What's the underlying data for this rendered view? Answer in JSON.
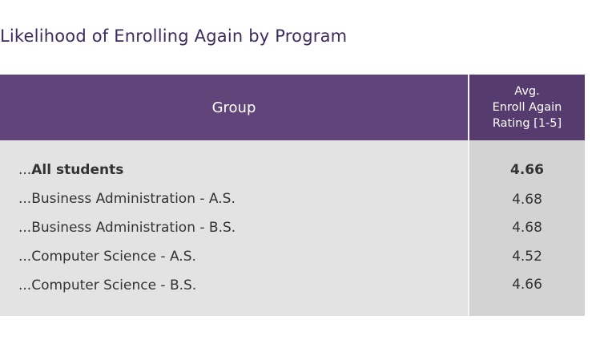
{
  "title": "Likelihood of Enrolling Again by Program",
  "header": {
    "group": "Group",
    "rating_line1": "Avg.",
    "rating_line2": "Enroll Again",
    "rating_line3": "Rating [1-5]"
  },
  "rows": [
    {
      "prefix": "...",
      "label": "All students",
      "value": "4.66"
    },
    {
      "prefix": "...",
      "label": "Business Administration - A.S.",
      "value": "4.68"
    },
    {
      "prefix": "...",
      "label": "Business Administration - B.S.",
      "value": "4.68"
    },
    {
      "prefix": "...",
      "label": "Computer Science - A.S.",
      "value": "4.52"
    },
    {
      "prefix": "...",
      "label": "Computer Science - B.S.",
      "value": "4.66"
    }
  ],
  "colors": {
    "title": "#3d2b5c",
    "header": "#61457a",
    "header_rating": "#553b6e",
    "body": "#e3e3e3",
    "body_rating": "#d3d3d3"
  }
}
